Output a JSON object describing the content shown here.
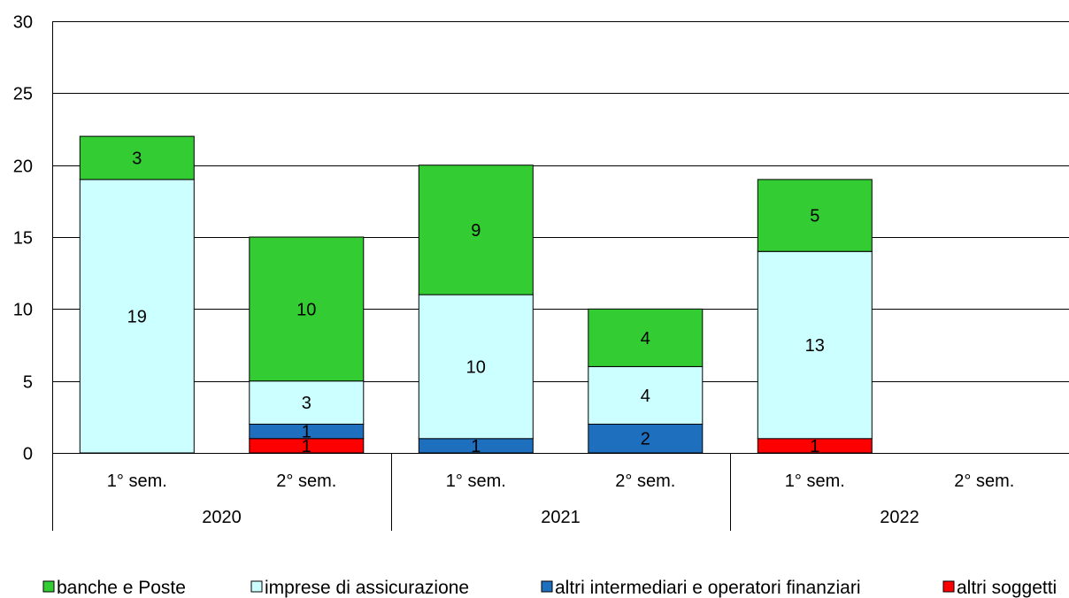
{
  "chart_data": {
    "type": "bar",
    "stacked": true,
    "title": "",
    "xlabel": "",
    "ylabel": "",
    "ylim": [
      0,
      30
    ],
    "yticks": [
      0,
      5,
      10,
      15,
      20,
      25,
      30
    ],
    "grid": true,
    "legend_position": "bottom",
    "categories": [
      "1° sem.",
      "2° sem.",
      "1° sem.",
      "2° sem.",
      "1° sem.",
      "2° sem."
    ],
    "groups": [
      {
        "label": "2020",
        "span": 2
      },
      {
        "label": "2021",
        "span": 2
      },
      {
        "label": "2022",
        "span": 2
      }
    ],
    "series": [
      {
        "name": "altri soggetti",
        "color": "#ff0000",
        "values": [
          0,
          1,
          0,
          0,
          1,
          null
        ]
      },
      {
        "name": "altri intermediari e operatori finanziari",
        "color": "#1f6fbf",
        "values": [
          0,
          1,
          1,
          2,
          0,
          null
        ]
      },
      {
        "name": "imprese di assicurazione",
        "color": "#ccffff",
        "values": [
          19,
          3,
          10,
          4,
          13,
          null
        ]
      },
      {
        "name": "banche e Poste",
        "color": "#33cc33",
        "values": [
          3,
          10,
          9,
          4,
          5,
          null
        ]
      }
    ],
    "legend_order": [
      "banche e Poste",
      "imprese di assicurazione",
      "altri intermediari e operatori finanziari",
      "altri soggetti"
    ]
  }
}
